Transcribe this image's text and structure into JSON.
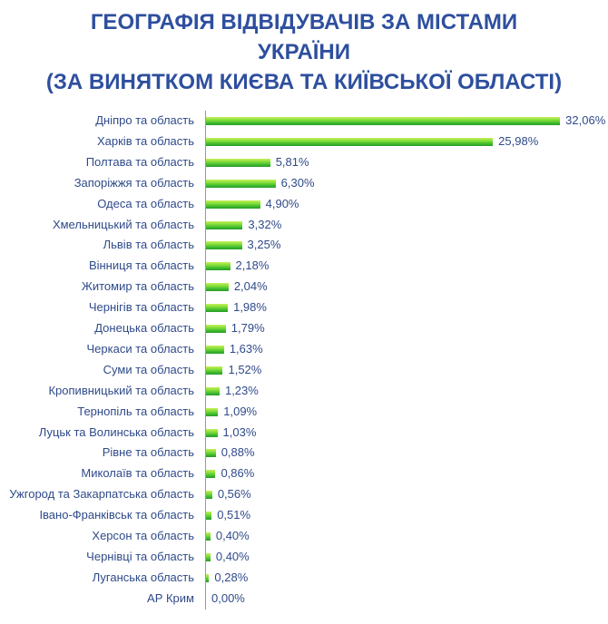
{
  "title": {
    "line1": "ГЕОГРАФІЯ ВІДВІДУВАЧІВ ЗА МІСТАМИ",
    "line2": "УКРАЇНИ",
    "line3": "(ЗА ВИНЯТКОМ КИЄВА ТА КИЇВСЬКОЇ ОБЛАСТІ)"
  },
  "colors": {
    "title": "#2e4f9e",
    "label": "#2f4a8a",
    "bar_top": "#c8f05a",
    "bar_bottom": "#2a9a28",
    "axis": "#9a9a9a"
  },
  "chart_data": {
    "type": "bar",
    "orientation": "horizontal",
    "title": "ГЕОГРАФІЯ ВІДВІДУВАЧІВ ЗА МІСТАМИ УКРАЇНИ (ЗА ВИНЯТКОМ КИЄВА ТА КИЇВСЬКОЇ ОБЛАСТІ)",
    "xlabel": "",
    "ylabel": "",
    "grid": false,
    "legend": null,
    "unit": "%",
    "categories": [
      "Дніпро та область",
      "Харків та область",
      "Полтава та область",
      "Запоріжжя та область",
      "Одеса та область",
      "Хмельницький та область",
      "Львів та область",
      "Вінниця та область",
      "Житомир та область",
      "Чернігів та область",
      "Донецька область",
      "Черкаси та область",
      "Суми та область",
      "Кропивницький та область",
      "Тернопіль та область",
      "Луцьк та Волинська область",
      "Рівне та область",
      "Миколаїв та область",
      "Ужгород та Закарпатська область",
      "Івано-Франківськ та область",
      "Херсон та область",
      "Чернівці та область",
      "Луганська область",
      "АР Крим"
    ],
    "values": [
      32.06,
      25.98,
      5.81,
      6.3,
      4.9,
      3.32,
      3.25,
      2.18,
      2.04,
      1.98,
      1.79,
      1.63,
      1.52,
      1.23,
      1.09,
      1.03,
      0.88,
      0.86,
      0.56,
      0.51,
      0.4,
      0.4,
      0.28,
      0.0
    ],
    "value_labels": [
      "32,06%",
      "25,98%",
      "5,81%",
      "6,30%",
      "4,90%",
      "3,32%",
      "3,25%",
      "2,18%",
      "2,04%",
      "1,98%",
      "1,79%",
      "1,63%",
      "1,52%",
      "1,23%",
      "1,09%",
      "1,03%",
      "0,88%",
      "0,86%",
      "0,56%",
      "0,51%",
      "0,40%",
      "0,40%",
      "0,28%",
      "0,00%"
    ]
  }
}
